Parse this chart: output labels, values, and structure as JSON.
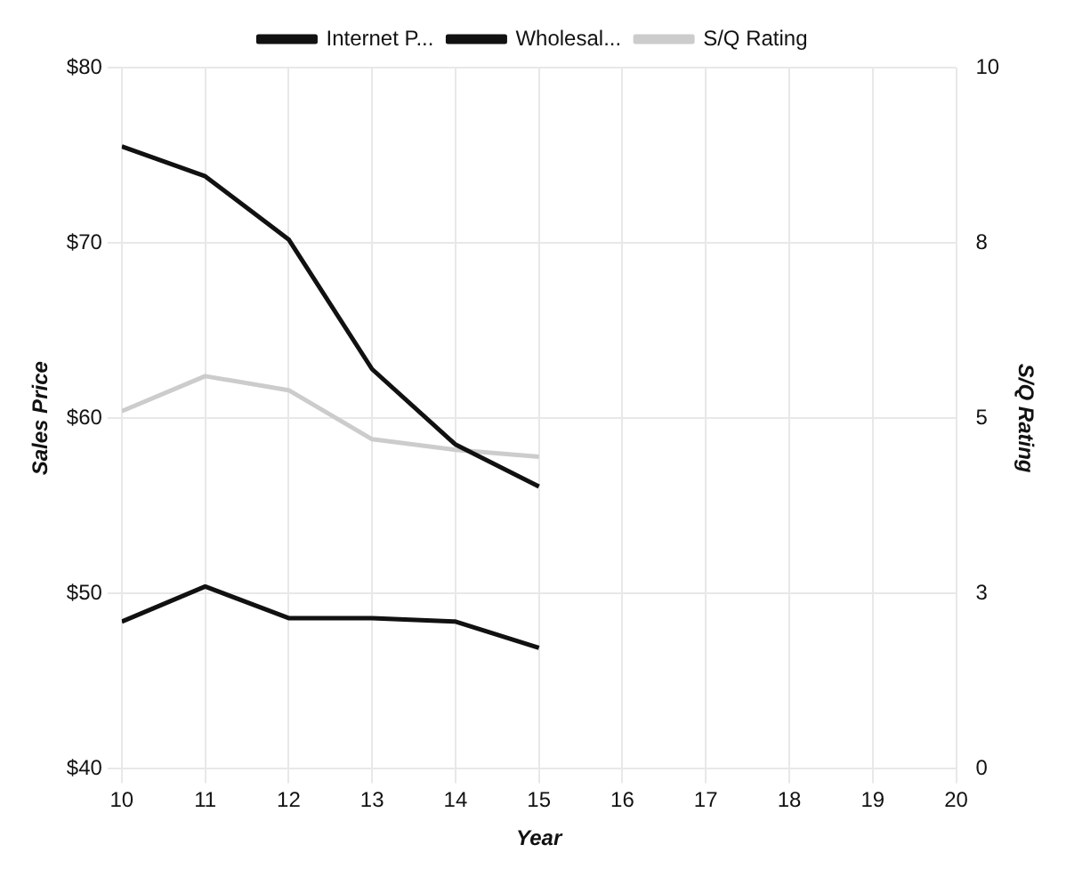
{
  "chart_data": {
    "type": "line",
    "xlabel": "Year",
    "ylabel": "Sales Price",
    "y2label": "S/Q Rating",
    "x": [
      10,
      11,
      12,
      13,
      14,
      15
    ],
    "series": [
      {
        "name": "Internet P...",
        "color": "#111111",
        "values": [
          75.5,
          73.8,
          70.2,
          62.8,
          58.5,
          56.1
        ]
      },
      {
        "name": "Wholesal...",
        "color": "#111111",
        "values": [
          48.4,
          50.4,
          48.6,
          48.6,
          48.4,
          46.9
        ]
      },
      {
        "name": "S/Q Rating",
        "color": "#cccccc",
        "axis": "y2",
        "values": [
          5.1,
          5.6,
          5.4,
          4.7,
          4.55,
          4.45
        ]
      }
    ],
    "xlim": [
      10,
      20
    ],
    "xticks": [
      10,
      11,
      12,
      13,
      14,
      15,
      16,
      17,
      18,
      19,
      20
    ],
    "ylim": [
      40,
      80
    ],
    "yticks": [
      {
        "value": 40,
        "label": "$40"
      },
      {
        "value": 50,
        "label": "$50"
      },
      {
        "value": 60,
        "label": "$60"
      },
      {
        "value": 70,
        "label": "$70"
      },
      {
        "value": 80,
        "label": "$80"
      }
    ],
    "y2lim": [
      0,
      10
    ],
    "y2ticks": [
      0,
      {
        "value": 2.5,
        "label": "3"
      },
      5,
      {
        "value": 7.5,
        "label": "8"
      },
      10
    ],
    "grid": true,
    "legend": "top",
    "marker": "none",
    "line_style": "solid"
  }
}
